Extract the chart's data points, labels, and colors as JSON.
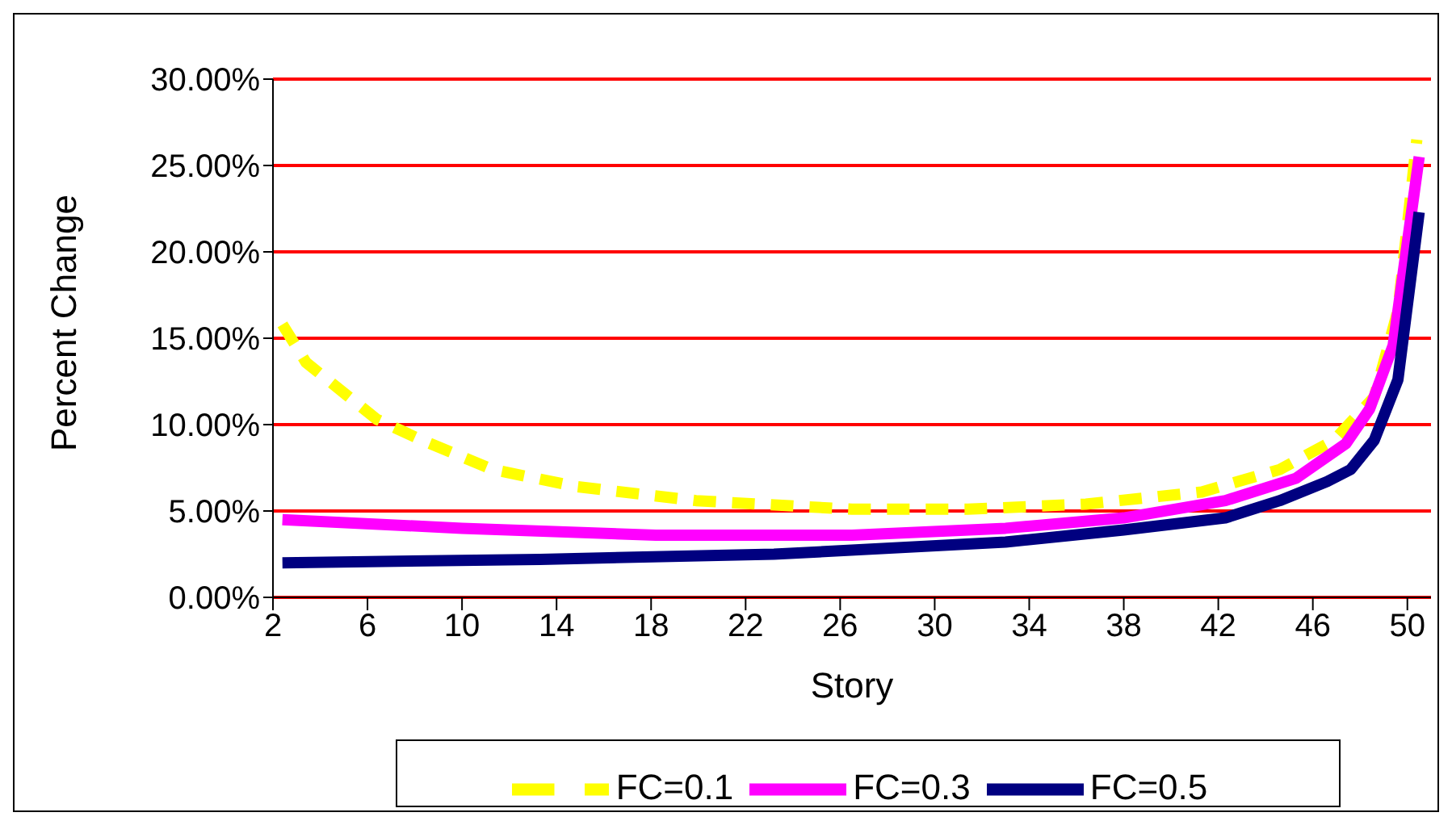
{
  "chart_data": {
    "type": "line",
    "xlabel": "Story",
    "ylabel": "Percent Change",
    "xlim": [
      2,
      51
    ],
    "xticks": [
      2,
      6,
      10,
      14,
      18,
      22,
      26,
      30,
      34,
      38,
      42,
      46,
      50
    ],
    "ylim": [
      0,
      30
    ],
    "yticks": [
      {
        "value": 0,
        "label": "0.00%"
      },
      {
        "value": 5,
        "label": "5.00%"
      },
      {
        "value": 10,
        "label": "10.00%"
      },
      {
        "value": 15,
        "label": "15.00%"
      },
      {
        "value": 20,
        "label": "20.00%"
      },
      {
        "value": 25,
        "label": "25.00%"
      },
      {
        "value": 30,
        "label": "30.00%"
      }
    ],
    "grid": "y",
    "legend": "bottom",
    "marker": "none",
    "series": [
      {
        "name": "FC=0.1",
        "color": "#ffff00",
        "line_style": "dashed",
        "x": [
          2.4,
          3.4,
          6.4,
          8.3,
          11.3,
          14.9,
          19.9,
          26.5,
          31.4,
          36.4,
          41.3,
          44.6,
          46.9,
          48.6,
          49.6,
          50.4
        ],
        "values": [
          15.8,
          13.6,
          10.3,
          9.1,
          7.4,
          6.4,
          5.6,
          5.1,
          5.1,
          5.4,
          6.1,
          7.4,
          9.1,
          11.6,
          16.6,
          26.5
        ]
      },
      {
        "name": "FC=0.3",
        "color": "#ff00ff",
        "line_style": "solid",
        "x": [
          2.4,
          10,
          18.2,
          26.5,
          33,
          38,
          42.3,
          45.3,
          47.4,
          48.4,
          49.4,
          50.5
        ],
        "values": [
          4.5,
          4.0,
          3.6,
          3.6,
          4.0,
          4.6,
          5.6,
          6.9,
          8.9,
          10.9,
          14.6,
          25.5
        ]
      },
      {
        "name": "FC=0.5",
        "color": "#000080",
        "line_style": "solid",
        "x": [
          2.4,
          13.3,
          23.2,
          33,
          38,
          42.3,
          44.6,
          46.6,
          47.6,
          48.6,
          49.6,
          50.5
        ],
        "values": [
          2.0,
          2.2,
          2.5,
          3.2,
          3.9,
          4.6,
          5.6,
          6.7,
          7.4,
          9.1,
          12.6,
          22.3
        ]
      }
    ]
  }
}
